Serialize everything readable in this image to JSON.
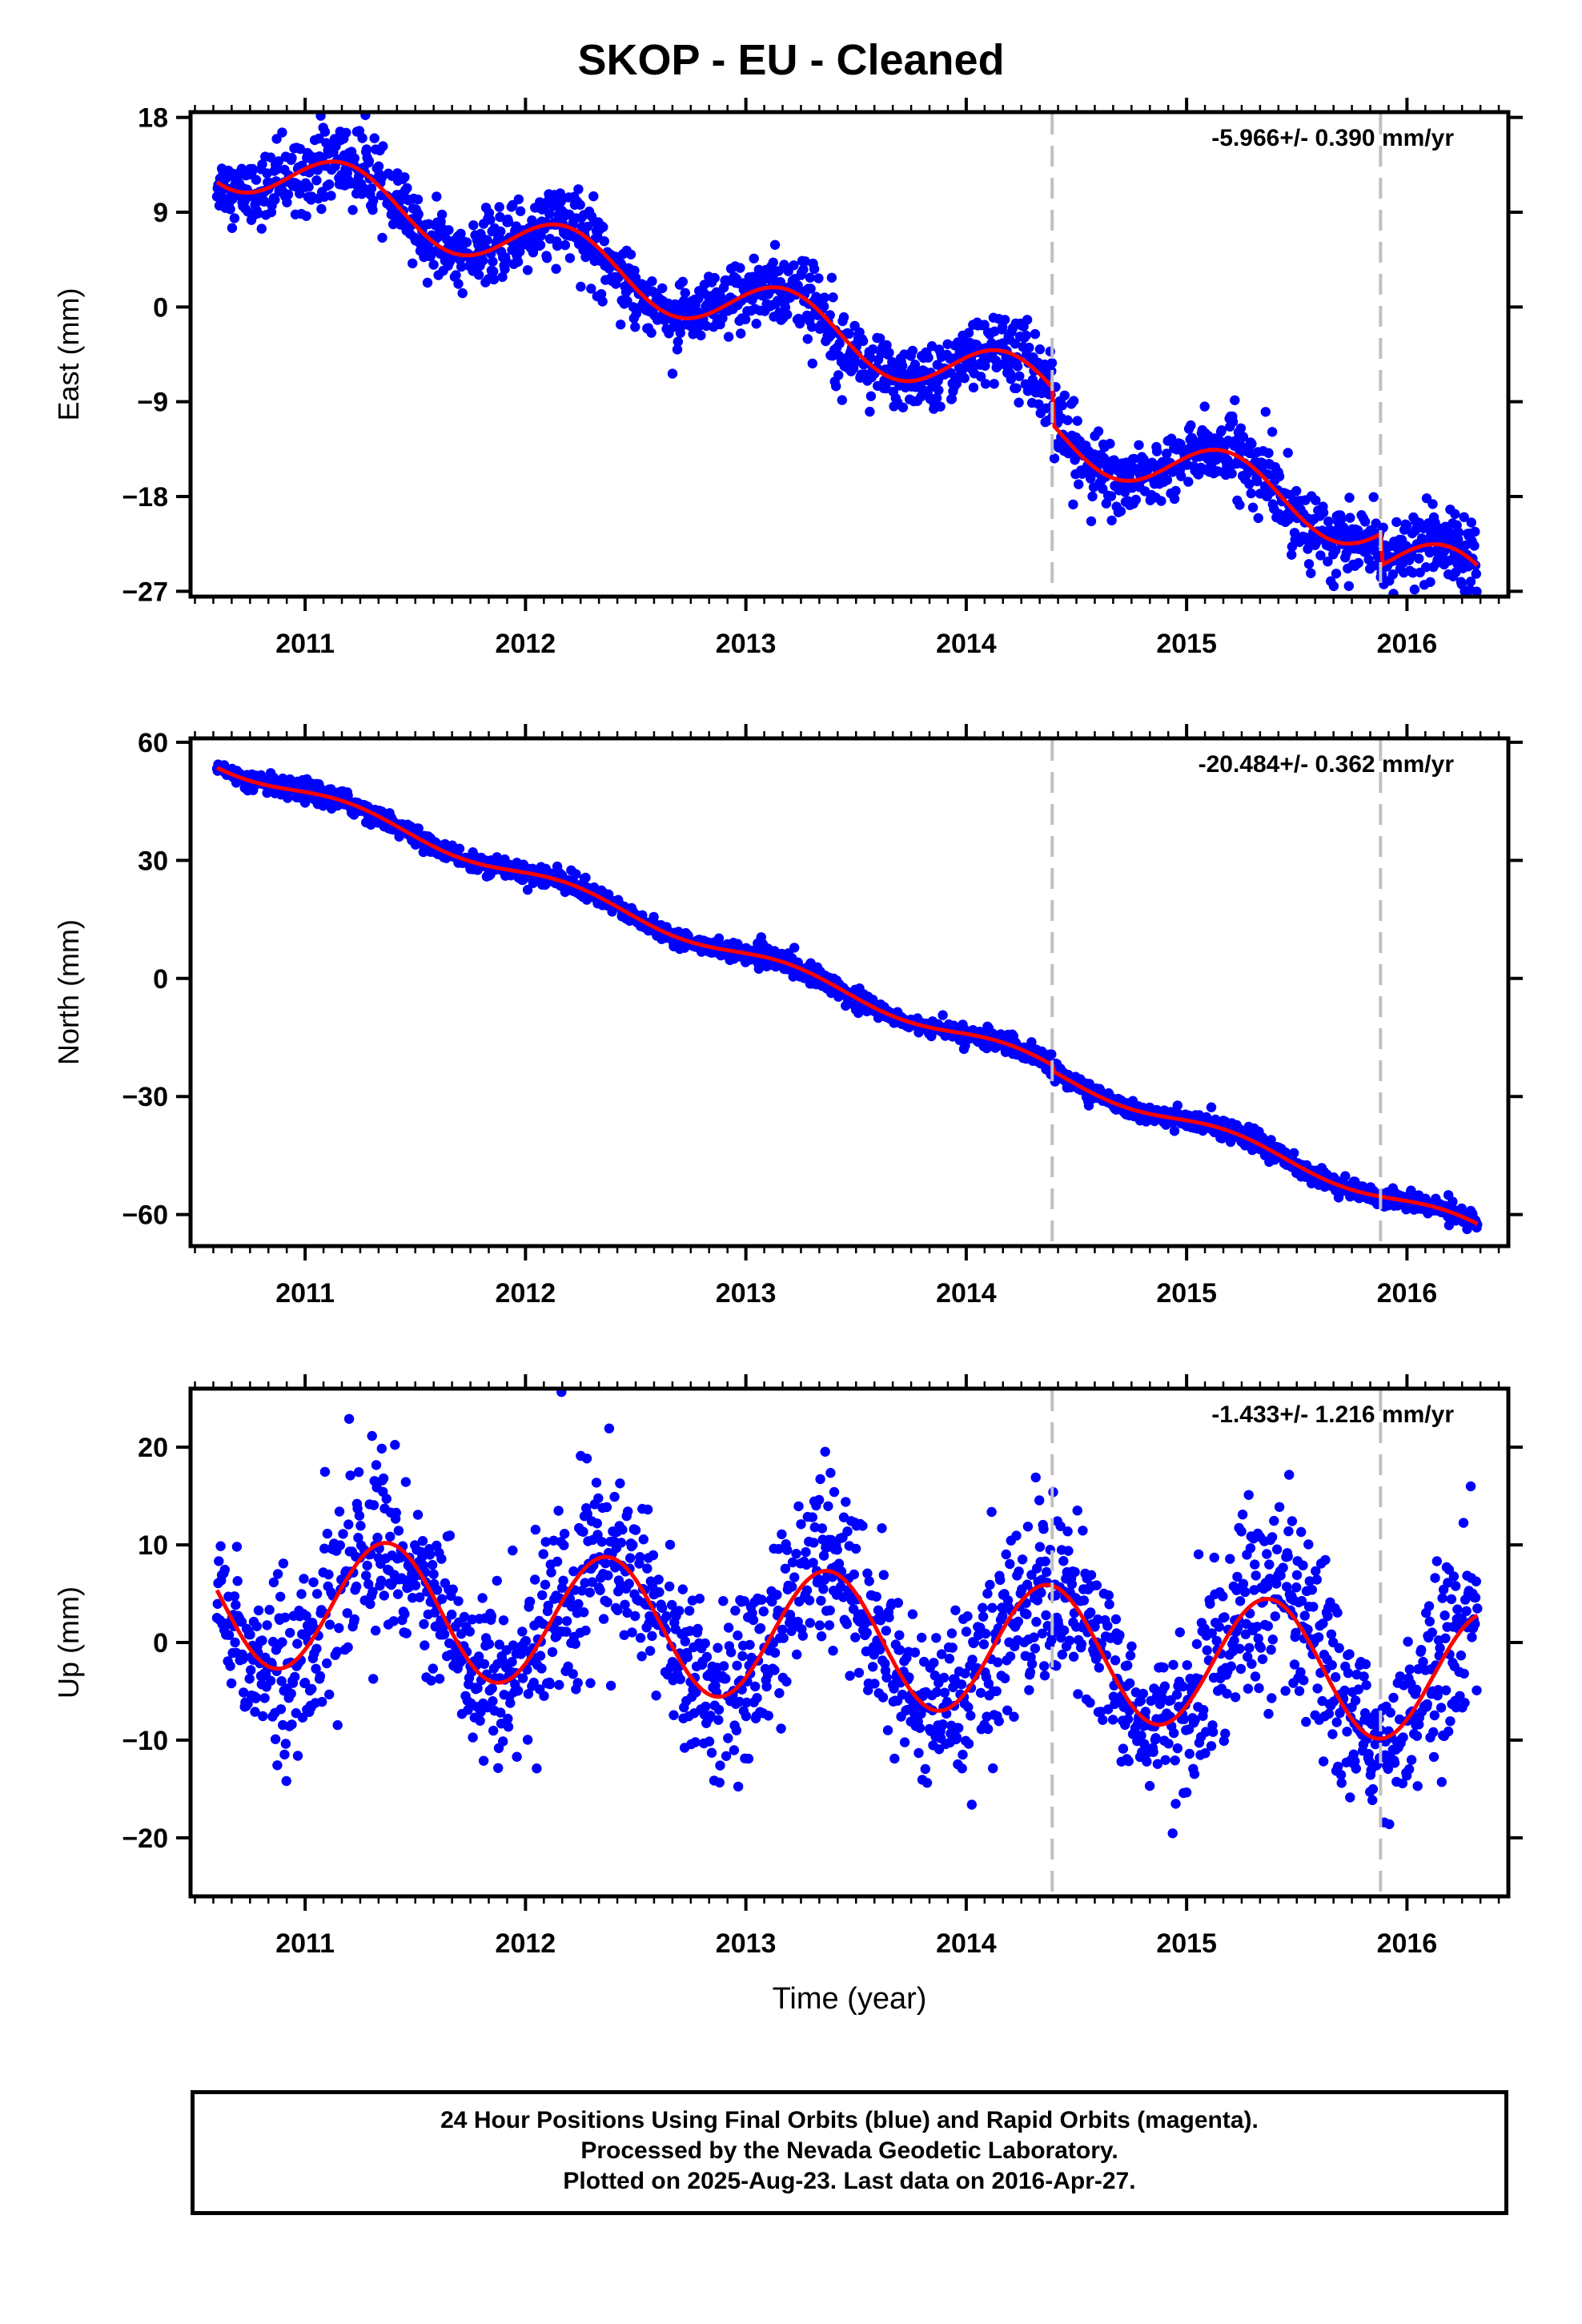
{
  "title": "SKOP  - EU - Cleaned",
  "colors": {
    "points": "#0000ff",
    "fit": "#ff0000",
    "breaks": "#c0c0c0",
    "axes": "#000000"
  },
  "footer": {
    "line1": "24 Hour Positions Using Final Orbits (blue) and Rapid Orbits (magenta).",
    "line2": "Processed by the Nevada Geodetic Laboratory.",
    "line3": "Plotted on 2025-Aug-23. Last data on 2016-Apr-27."
  },
  "chart_data": [
    {
      "type": "scatter",
      "ylabel": "East (mm)",
      "xlabel": "",
      "rate_label": "-5.966+/- 0.390 mm/yr",
      "xlim": [
        2010.48,
        2016.46
      ],
      "ylim": [
        -27.5,
        18.5
      ],
      "yticks": [
        18,
        9,
        0,
        -9,
        -18,
        -27
      ],
      "xticks": [
        2011,
        2012,
        2013,
        2014,
        2015,
        2016
      ],
      "x_range": [
        2010.6,
        2016.32
      ],
      "rate": -5.966,
      "intercept": 14.3,
      "annual_amp": 2.8,
      "annual_phase": 0.18,
      "scatter": 1.6,
      "breaks": [
        {
          "t": 2014.39,
          "offset": -3.5
        },
        {
          "t": 2015.88,
          "offset": -3.0
        }
      ],
      "series": [
        {
          "kind": "points",
          "color": "#0000ff"
        },
        {
          "kind": "fit",
          "color": "#ff0000"
        }
      ]
    },
    {
      "type": "scatter",
      "ylabel": "North (mm)",
      "xlabel": "",
      "rate_label": "-20.484+/- 0.362 mm/yr",
      "xlim": [
        2010.48,
        2016.46
      ],
      "ylim": [
        -68,
        61
      ],
      "yticks": [
        60,
        30,
        0,
        -30,
        -60
      ],
      "xticks": [
        2011,
        2012,
        2013,
        2014,
        2015,
        2016
      ],
      "x_range": [
        2010.6,
        2016.32
      ],
      "rate": -20.484,
      "intercept": 55,
      "annual_amp": 1.8,
      "annual_phase": 0.2,
      "scatter": 1.1,
      "breaks": [
        {
          "t": 2014.39,
          "offset": -1.5
        },
        {
          "t": 2015.88,
          "offset": 0
        }
      ],
      "series": [
        {
          "kind": "points",
          "color": "#0000ff"
        },
        {
          "kind": "fit",
          "color": "#ff0000"
        }
      ]
    },
    {
      "type": "scatter",
      "ylabel": "Up (mm)",
      "xlabel": "Time (year)",
      "rate_label": "-1.433+/- 1.216 mm/yr",
      "xlim": [
        2010.48,
        2016.46
      ],
      "ylim": [
        -26,
        26
      ],
      "yticks": [
        20,
        10,
        0,
        -10,
        -20
      ],
      "xticks": [
        2011,
        2012,
        2013,
        2014,
        2015,
        2016
      ],
      "x_range": [
        2010.6,
        2016.32
      ],
      "rate": -1.433,
      "intercept": 4.5,
      "annual_amp": 6.8,
      "annual_phase": 0.37,
      "scatter": 4.2,
      "breaks": [
        {
          "t": 2014.39,
          "offset": 0
        },
        {
          "t": 2015.88,
          "offset": 0
        }
      ],
      "series": [
        {
          "kind": "points",
          "color": "#0000ff"
        },
        {
          "kind": "fit",
          "color": "#ff0000"
        }
      ]
    }
  ]
}
